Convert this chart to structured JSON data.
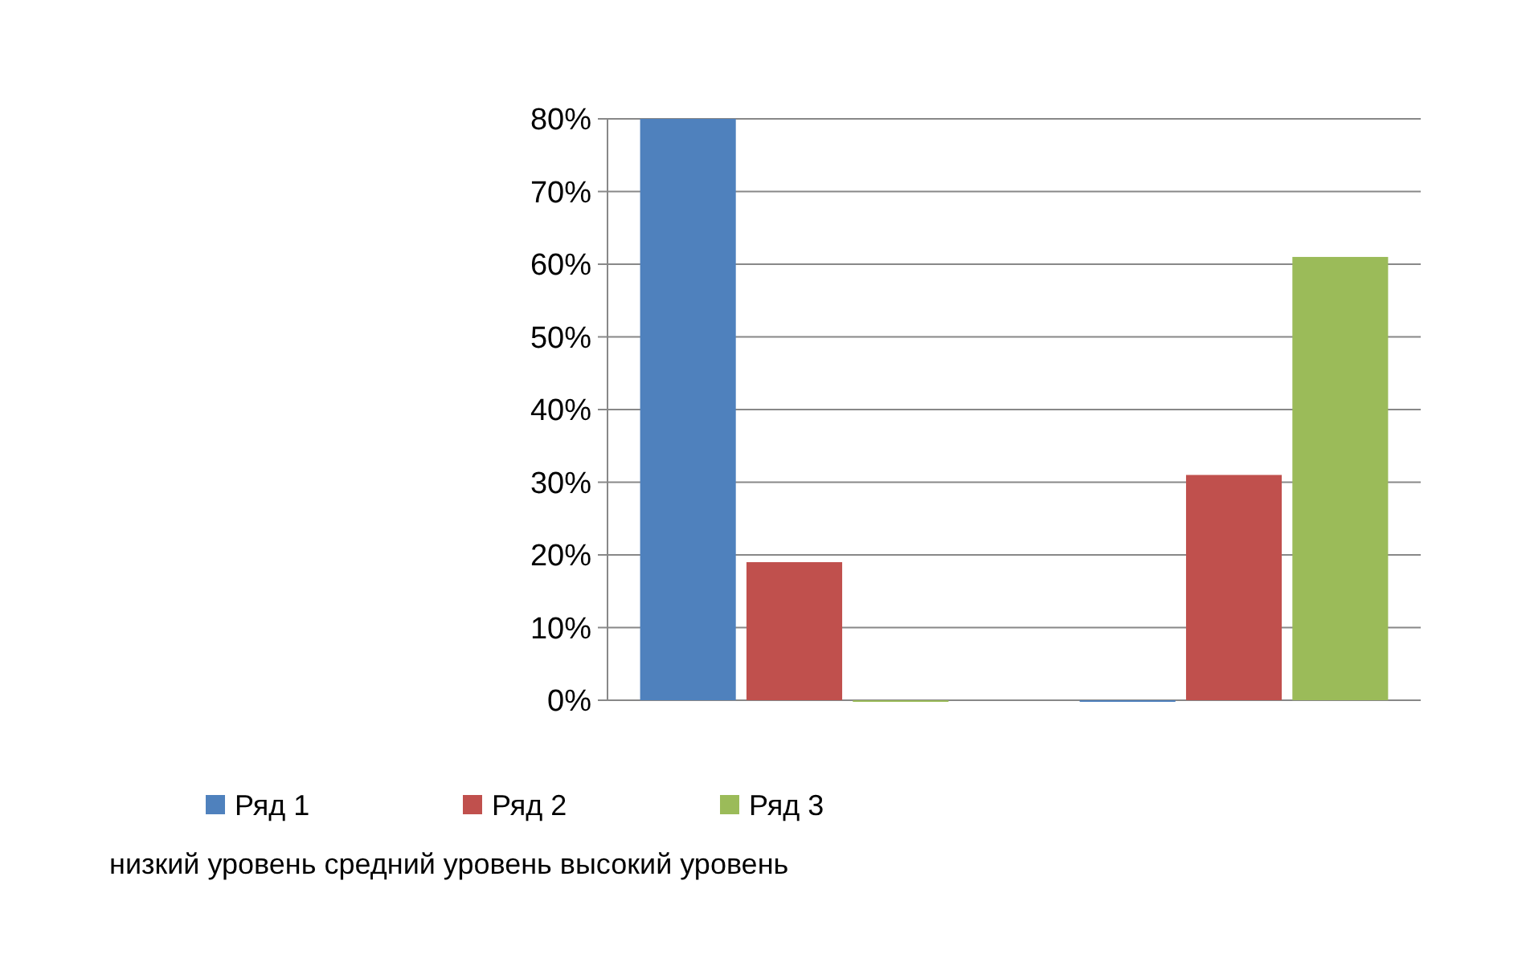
{
  "chart_data": {
    "type": "bar",
    "categories": [
      null,
      null
    ],
    "series": [
      {
        "name": "Ряд 1",
        "color": "#4f81bd",
        "values": [
          80,
          0
        ]
      },
      {
        "name": "Ряд 2",
        "color": "#c0504d",
        "values": [
          19,
          31
        ]
      },
      {
        "name": "Ряд 3",
        "color": "#9bbb59",
        "values": [
          0,
          61
        ]
      }
    ],
    "ylim": [
      0,
      80
    ],
    "yticks": [
      {
        "value": 0,
        "label": "0%"
      },
      {
        "value": 10,
        "label": "10%"
      },
      {
        "value": 20,
        "label": "20%"
      },
      {
        "value": 30,
        "label": "30%"
      },
      {
        "value": 40,
        "label": "40%"
      },
      {
        "value": 50,
        "label": "50%"
      },
      {
        "value": 60,
        "label": "60%"
      },
      {
        "value": 70,
        "label": "70%"
      },
      {
        "value": 80,
        "label": "80%"
      }
    ],
    "grid": "y",
    "legend": "bottom",
    "annotations": [
      "низкий уровень средний уровень высокий уровень"
    ]
  }
}
